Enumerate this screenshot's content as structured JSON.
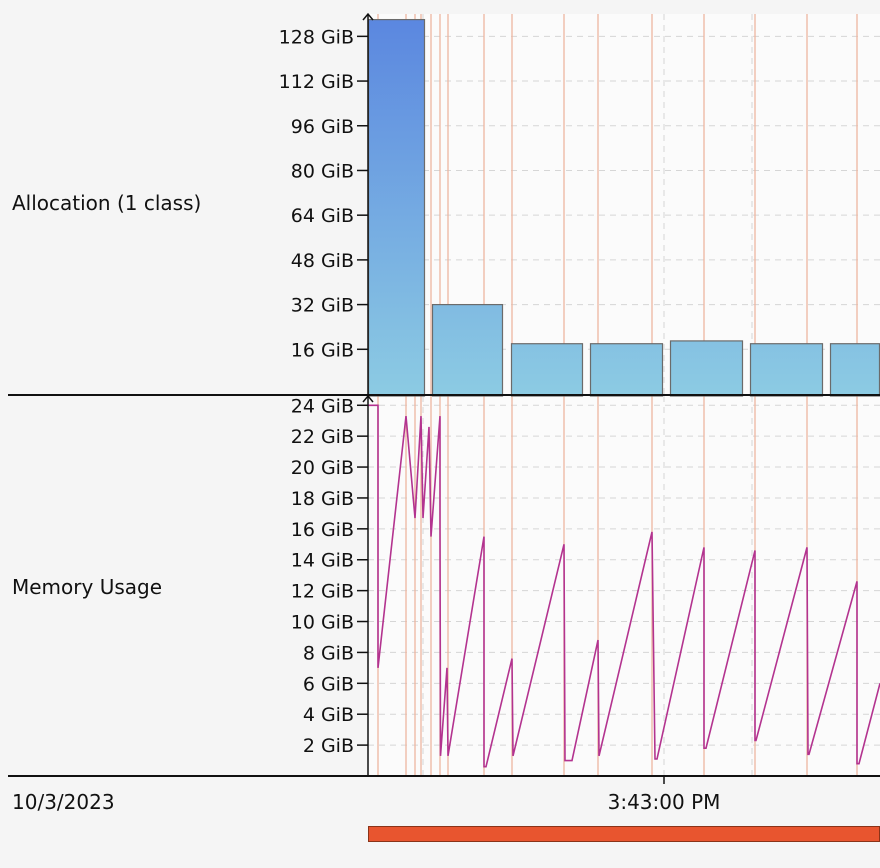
{
  "chart_data": [
    {
      "type": "bar",
      "row_label": "Allocation (1 class)",
      "ylabel": "",
      "ylim": [
        0,
        136
      ],
      "yticks": [
        16,
        32,
        48,
        64,
        80,
        96,
        112,
        128
      ],
      "ytick_labels": [
        "16 GiB",
        "32 GiB",
        "48 GiB",
        "64 GiB",
        "80 GiB",
        "96 GiB",
        "112 GiB",
        "128 GiB"
      ],
      "series": [
        {
          "values": [
            134,
            32,
            18,
            18,
            19,
            18,
            18
          ]
        }
      ],
      "colors": {
        "bar_top": "#5a86e0",
        "bar_bottom": "#8ccbe3",
        "bar_border": "#6b6b6b"
      }
    },
    {
      "type": "line",
      "row_label": "Memory Usage",
      "ylabel": "",
      "ylim": [
        0,
        24.6
      ],
      "yticks": [
        2,
        4,
        6,
        8,
        10,
        12,
        14,
        16,
        18,
        20,
        22,
        24
      ],
      "ytick_labels": [
        "2 GiB",
        "4 GiB",
        "6 GiB",
        "8 GiB",
        "10 GiB",
        "12 GiB",
        "14 GiB",
        "16 GiB",
        "18 GiB",
        "20 GiB",
        "22 GiB",
        "24 GiB"
      ],
      "x_range": [
        0,
        512
      ],
      "series": [
        {
          "points": [
            [
              0,
              24
            ],
            [
              10,
              24
            ],
            [
              10,
              7
            ],
            [
              38,
              23.3
            ],
            [
              47,
              16.7
            ],
            [
              53,
              23.3
            ],
            [
              55,
              16.7
            ],
            [
              61,
              22.6
            ],
            [
              63,
              15.5
            ],
            [
              72,
              23.3
            ],
            [
              72,
              16.3
            ],
            [
              72.5,
              1.3
            ],
            [
              79,
              7
            ],
            [
              80,
              1.3
            ],
            [
              116,
              15.5
            ],
            [
              116,
              0.6
            ],
            [
              118,
              0.6
            ],
            [
              144,
              7.6
            ],
            [
              145,
              1.3
            ],
            [
              196,
              15
            ],
            [
              197,
              1
            ],
            [
              204,
              1
            ],
            [
              230,
              8.8
            ],
            [
              231,
              1.3
            ],
            [
              284,
              15.8
            ],
            [
              287,
              1.1
            ],
            [
              289,
              1.1
            ],
            [
              336,
              14.8
            ],
            [
              336,
              1.8
            ],
            [
              338,
              1.8
            ],
            [
              387,
              14.6
            ],
            [
              387,
              2.3
            ],
            [
              388,
              2.3
            ],
            [
              439,
              14.8
            ],
            [
              440,
              1.4
            ],
            [
              441,
              1.4
            ],
            [
              489,
              12.6
            ],
            [
              489,
              0.8
            ],
            [
              491,
              0.8
            ],
            [
              512,
              6
            ]
          ]
        }
      ],
      "colors": {
        "line": "#b3338f"
      }
    }
  ],
  "gc_event_lines": [
    10,
    38,
    47,
    53,
    63,
    72,
    80,
    116,
    144,
    196,
    230,
    284,
    336,
    387,
    439,
    489
  ],
  "grid_x": [
    55,
    116,
    196,
    296,
    384,
    489
  ],
  "colors": {
    "gc_line": "#eeb6a0",
    "grid": "#d6d6d6",
    "plot_bg": "#fbfbfb",
    "axis": "#111111",
    "progress": "#e8552f"
  },
  "footer": {
    "date": "10/3/2023",
    "time": "3:43:00 PM",
    "time_x": 296
  }
}
